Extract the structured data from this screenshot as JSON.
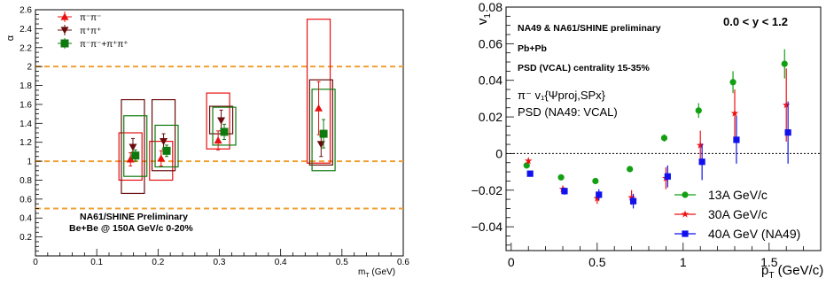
{
  "chart_data": [
    {
      "type": "scatter",
      "ylabel": "α",
      "xlabel": "m",
      "xlabel_sub": "T",
      "xlabel_unit": " (GeV)",
      "xlim": [
        0,
        0.6
      ],
      "ylim": [
        0,
        2.6
      ],
      "xticks": [
        0,
        0.1,
        0.2,
        0.3,
        0.4,
        0.5,
        0.6
      ],
      "xtick_labels": [
        "0",
        "0.1",
        "0.2",
        "0.3",
        "0.4",
        "0.5",
        "0.6"
      ],
      "yticks": [
        0.2,
        0.4,
        0.6,
        0.8,
        1.0,
        1.2,
        1.4,
        1.6,
        1.8,
        2.0,
        2.2,
        2.4,
        2.6
      ],
      "ytick_labels": [
        "0.2",
        "0.4",
        "0.6",
        "0.8",
        "1",
        "1.2",
        "1.4",
        "1.6",
        "1.8",
        "2",
        "2.2",
        "2.4",
        "2.6"
      ],
      "reference_lines": [
        0.5,
        1.0,
        2.0
      ],
      "reference_color": "#f0a030",
      "legend_position": "top-left",
      "annotations": [
        "NA61/SHINE Preliminary",
        "Be+Be @ 150A GeV/c 0-20%"
      ],
      "series": [
        {
          "name": "π⁻π⁻",
          "color": "#e81010",
          "marker": "triangle-up",
          "x": [
            0.155,
            0.205,
            0.298,
            0.462
          ],
          "y": [
            1.02,
            1.03,
            1.22,
            1.56
          ],
          "stat_err": [
            0.07,
            0.08,
            0.1,
            0.28
          ],
          "sys_lo": [
            0.8,
            0.8,
            1.13,
            0.98
          ],
          "sys_hi": [
            1.3,
            1.21,
            1.72,
            2.5
          ]
        },
        {
          "name": "π⁺π⁺",
          "color": "#6a0c0c",
          "marker": "triangle-down",
          "x": [
            0.159,
            0.209,
            0.303,
            0.466
          ],
          "y": [
            1.15,
            1.21,
            1.43,
            1.18
          ],
          "stat_err": [
            0.09,
            0.08,
            0.11,
            0.13
          ],
          "sys_lo": [
            0.66,
            0.9,
            1.29,
            0.96
          ],
          "sys_hi": [
            1.65,
            1.65,
            1.58,
            1.86
          ]
        },
        {
          "name": "π⁻π⁻+π⁺π⁺",
          "color": "#0e7a0e",
          "marker": "square",
          "x": [
            0.163,
            0.214,
            0.308,
            0.47
          ],
          "y": [
            1.06,
            1.11,
            1.31,
            1.29
          ],
          "stat_err": [
            0.06,
            0.06,
            0.08,
            0.15
          ],
          "sys_lo": [
            0.84,
            0.94,
            1.17,
            0.9
          ],
          "sys_hi": [
            1.48,
            1.38,
            1.57,
            1.76
          ]
        }
      ]
    },
    {
      "type": "scatter",
      "ylabel": "v",
      "ylabel_sub": "1",
      "xlabel": "p",
      "xlabel_sub": "T",
      "xlabel_unit": " (GeV/c)",
      "xlim": [
        -0.03,
        1.8
      ],
      "ylim": [
        -0.053,
        0.08
      ],
      "xticks": [
        0,
        0.5,
        1,
        1.5
      ],
      "xtick_labels": [
        "0",
        "0.5",
        "1",
        "1.5"
      ],
      "yticks": [
        -0.04,
        -0.02,
        0,
        0.02,
        0.04,
        0.06,
        0.08
      ],
      "ytick_labels": [
        "−0.04",
        "−0.02",
        "0",
        "0.02",
        "0.04",
        "0.06",
        "0.08"
      ],
      "zero_line": true,
      "legend_position": "bottom-right",
      "annotations": [
        "NA49 & NA61/SHINE preliminary",
        "Pb+Pb",
        "PSD (VCAL) centrality 15-35%",
        "π⁻ v₁{Ψproj,SPx}",
        "PSD (NA49: VCAL)",
        "0.0 < y < 1.2"
      ],
      "series": [
        {
          "name": "13A GeV/c",
          "color": "#12a012",
          "marker": "circle",
          "x": [
            0.09,
            0.29,
            0.49,
            0.69,
            0.89,
            1.09,
            1.29,
            1.59
          ],
          "y": [
            -0.0065,
            -0.013,
            -0.015,
            -0.0085,
            0.0085,
            0.0235,
            0.039,
            0.049
          ],
          "err": [
            0.0015,
            0.0015,
            0.0015,
            0.0015,
            0.002,
            0.004,
            0.006,
            0.008
          ]
        },
        {
          "name": "30A GeV/c",
          "color": "#ee1111",
          "marker": "star",
          "x": [
            0.1,
            0.3,
            0.5,
            0.7,
            0.9,
            1.1,
            1.3,
            1.6
          ],
          "y": [
            -0.004,
            -0.0195,
            -0.0245,
            -0.024,
            -0.0135,
            0.0045,
            0.022,
            0.0265
          ],
          "err": [
            0.0015,
            0.002,
            0.003,
            0.004,
            0.006,
            0.008,
            0.013,
            0.02
          ]
        },
        {
          "name": "40A GeV (NA49)",
          "color": "#1111ee",
          "marker": "square",
          "x": [
            0.11,
            0.31,
            0.51,
            0.71,
            0.91,
            1.11,
            1.31,
            1.61
          ],
          "y": [
            -0.011,
            -0.0205,
            -0.0225,
            -0.026,
            -0.0125,
            -0.0045,
            0.0075,
            0.0115
          ],
          "err": [
            0.0015,
            0.002,
            0.003,
            0.004,
            0.006,
            0.01,
            0.013,
            0.017
          ]
        }
      ]
    }
  ]
}
